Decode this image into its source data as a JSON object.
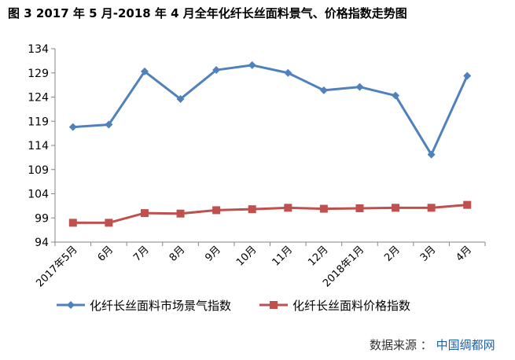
{
  "figure_title": "图 3  2017 年 5 月-2018 年 4 月全年化纤长丝面料景气、价格指数走势图",
  "source": {
    "label": "数据来源",
    "sep": "：",
    "org": "中国绸都网"
  },
  "chart_data": {
    "type": "line",
    "title": "",
    "xlabel": "",
    "ylabel": "",
    "categories": [
      "2017年5月",
      "6月",
      "7月",
      "8月",
      "9月",
      "10月",
      "11月",
      "12月",
      "2018年1月",
      "2月",
      "3月",
      "4月"
    ],
    "yticks": [
      94,
      99,
      104,
      109,
      114,
      119,
      124,
      129,
      134
    ],
    "ylim": [
      94,
      134
    ],
    "grid": false,
    "legend": "bottom",
    "series": [
      {
        "name": "化纤长丝面料市场景气指数",
        "color": "#4f81bd",
        "marker": "diamond",
        "values": [
          117.8,
          118.3,
          129.3,
          123.6,
          129.6,
          130.6,
          129.0,
          125.4,
          126.1,
          124.3,
          112.1,
          128.4
        ]
      },
      {
        "name": "化纤长丝面料价格指数",
        "color": "#c0504d",
        "marker": "square",
        "values": [
          98.0,
          98.0,
          100.0,
          99.9,
          100.6,
          100.8,
          101.1,
          100.9,
          101.0,
          101.1,
          101.1,
          101.7
        ]
      }
    ]
  }
}
